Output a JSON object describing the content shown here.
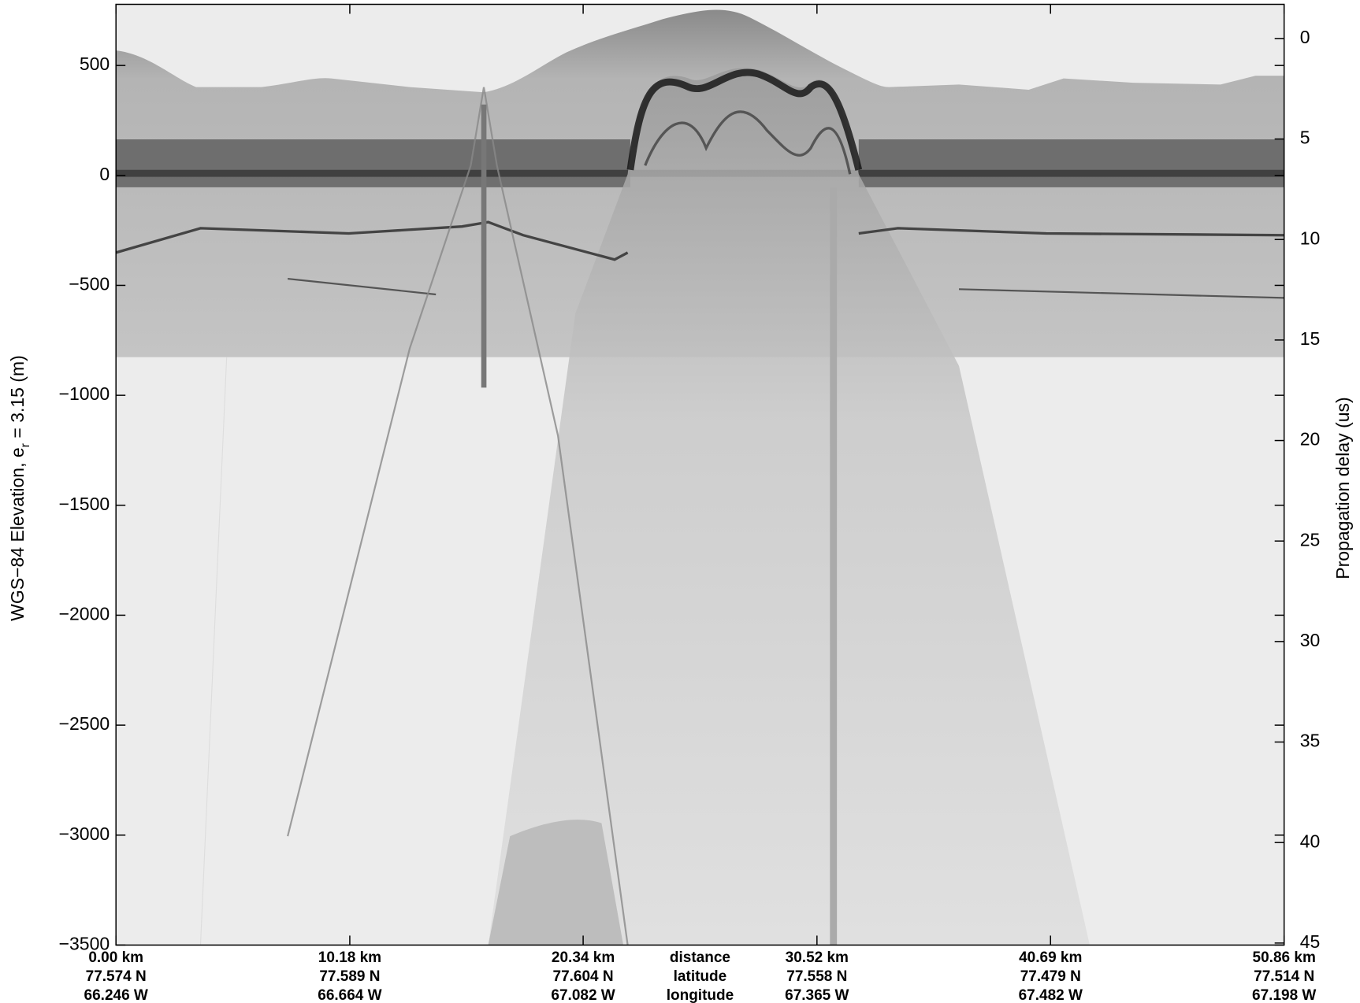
{
  "chart_data": {
    "type": "echogram",
    "ylabel_parts": [
      "WGS−84 Elevation, e",
      "r",
      " = 3.15 (m)"
    ],
    "y2label": "Propagation delay (us)",
    "xlim": [
      0,
      50.86
    ],
    "xticks": [
      {
        "value": 0,
        "label": "0.00 km"
      },
      {
        "value": 10.18,
        "label": "10.18 km"
      },
      {
        "value": 20.34,
        "label": "20.34 km"
      },
      {
        "value": 30.52,
        "label": "30.52 km"
      },
      {
        "value": 40.69,
        "label": "40.69 km"
      },
      {
        "value": 50.86,
        "label": "50.86 km"
      }
    ],
    "xtick_latitudes": [
      "77.574 N",
      "77.589 N",
      "77.604 N",
      "77.558 N",
      "77.479 N",
      "77.514 N"
    ],
    "xtick_longitudes": [
      "66.246 W",
      "66.664 W",
      "67.082 W",
      "67.365 W",
      "67.482 W",
      "67.198 W"
    ],
    "xtick_row_names": [
      "distance",
      "latitude",
      "longitude"
    ],
    "ylim": [
      -3500,
      778
    ],
    "yticks": [
      {
        "value": 500,
        "label": "500"
      },
      0,
      {
        "value": -500,
        "label": "−500"
      },
      {
        "value": -1000,
        "label": "−1000"
      },
      {
        "value": -1500,
        "label": "−1500"
      },
      {
        "value": -2000,
        "label": "−2000"
      },
      {
        "value": -2500,
        "label": "−2500"
      },
      {
        "value": -3000,
        "label": "−3000"
      },
      {
        "value": -3500,
        "label": "−3500"
      }
    ],
    "y2lim": [
      -1.7,
      45.1
    ],
    "y2_inverted": true,
    "y2ticks": [
      0,
      5,
      10,
      15,
      20,
      25,
      30,
      35,
      40,
      45
    ],
    "colormap": "gray"
  }
}
